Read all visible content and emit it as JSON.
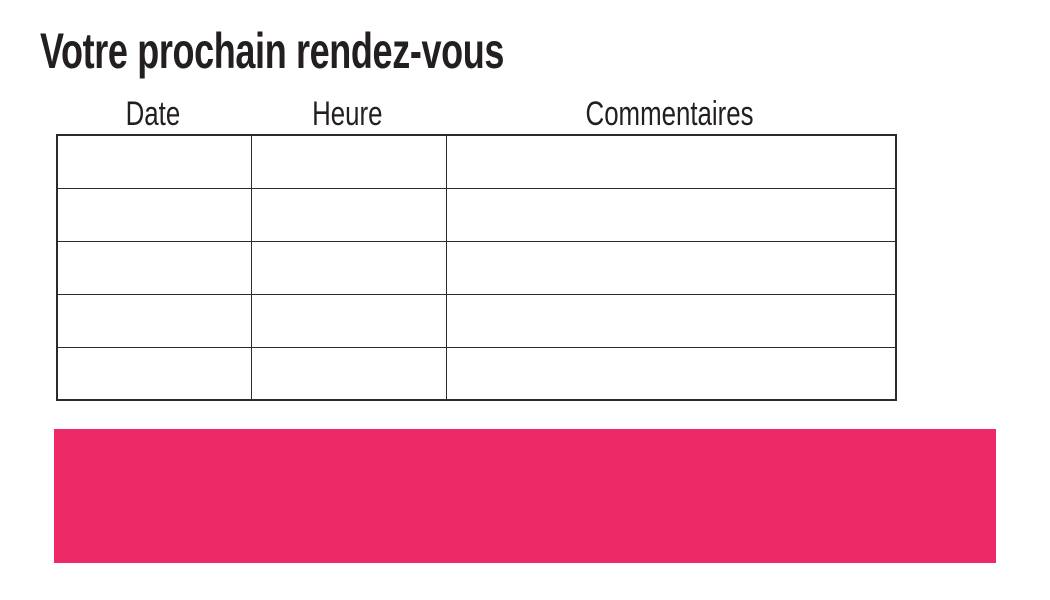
{
  "page": {
    "title": "Votre prochain rendez-vous",
    "background_color": "#ffffff",
    "text_color": "#231f20"
  },
  "table": {
    "columns": [
      {
        "label": "Date"
      },
      {
        "label": "Heure"
      },
      {
        "label": "Commentaires"
      }
    ],
    "row_count": 5,
    "rows": [
      [
        "",
        "",
        ""
      ],
      [
        "",
        "",
        ""
      ],
      [
        "",
        "",
        ""
      ],
      [
        "",
        "",
        ""
      ],
      [
        "",
        "",
        ""
      ]
    ],
    "border_color": "#2b2b2b"
  },
  "highlight_bar": {
    "color": "#ed2a67",
    "text": ""
  }
}
